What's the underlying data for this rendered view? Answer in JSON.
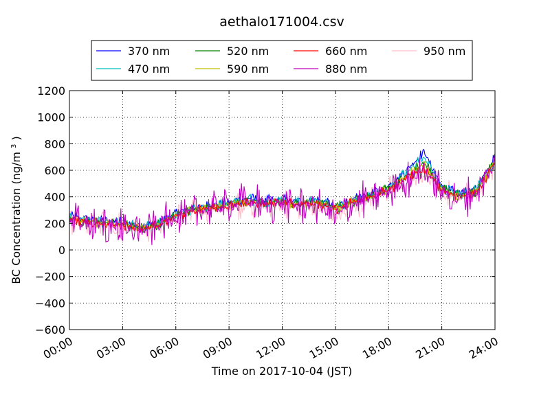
{
  "chart_data": {
    "type": "line",
    "title": "aethalo171004.csv",
    "xlabel": "Time on 2017-10-04 (JST)",
    "ylabel_main": "BC Concentration (ng/m",
    "ylabel_sup": "3",
    "ylabel_end": ")",
    "xlim": [
      "00:00",
      "24:00"
    ],
    "ylim": [
      -600,
      1200
    ],
    "x_ticks": [
      "00:00",
      "03:00",
      "06:00",
      "09:00",
      "12:00",
      "15:00",
      "18:00",
      "21:00",
      "24:00"
    ],
    "y_ticks": [
      "−600",
      "−400",
      "−200",
      "0",
      "200",
      "400",
      "600",
      "800",
      "1000",
      "1200"
    ],
    "grid": true,
    "legend_position": "top",
    "x_hours": [
      0,
      1,
      2,
      3,
      4,
      5,
      6,
      7,
      8,
      9,
      10,
      11,
      12,
      13,
      14,
      15,
      16,
      17,
      18,
      19,
      20,
      21,
      22,
      23,
      24
    ],
    "series": [
      {
        "name": "370 nm",
        "color": "#0000ff",
        "values": [
          250,
          230,
          220,
          210,
          170,
          200,
          280,
          320,
          340,
          360,
          390,
          370,
          380,
          360,
          380,
          330,
          380,
          420,
          480,
          600,
          740,
          480,
          430,
          470,
          700
        ]
      },
      {
        "name": "470 nm",
        "color": "#00bfbf",
        "values": [
          240,
          220,
          210,
          200,
          165,
          195,
          270,
          310,
          330,
          350,
          380,
          360,
          370,
          350,
          370,
          320,
          370,
          410,
          470,
          580,
          700,
          470,
          420,
          460,
          690
        ]
      },
      {
        "name": "520 nm",
        "color": "#008000",
        "values": [
          240,
          215,
          205,
          195,
          160,
          190,
          265,
          305,
          325,
          345,
          375,
          355,
          365,
          345,
          360,
          315,
          365,
          405,
          460,
          560,
          660,
          460,
          410,
          450,
          680
        ]
      },
      {
        "name": "590 nm",
        "color": "#bfbf00",
        "values": [
          235,
          210,
          200,
          190,
          160,
          185,
          260,
          300,
          320,
          340,
          370,
          350,
          360,
          340,
          360,
          310,
          360,
          400,
          455,
          550,
          640,
          455,
          405,
          445,
          670
        ]
      },
      {
        "name": "660 nm",
        "color": "#ff0000",
        "values": [
          230,
          210,
          195,
          185,
          155,
          185,
          255,
          295,
          320,
          335,
          365,
          345,
          355,
          335,
          350,
          305,
          355,
          395,
          450,
          540,
          620,
          450,
          400,
          440,
          660
        ]
      },
      {
        "name": "880 nm",
        "color": "#bf00bf",
        "values": [
          220,
          200,
          190,
          180,
          140,
          175,
          250,
          285,
          310,
          330,
          360,
          340,
          350,
          330,
          340,
          250,
          350,
          390,
          440,
          520,
          600,
          440,
          390,
          430,
          650
        ]
      },
      {
        "name": "950 nm",
        "color": "#ffc0cb",
        "values": [
          215,
          195,
          185,
          175,
          140,
          170,
          245,
          280,
          305,
          325,
          355,
          335,
          345,
          325,
          335,
          240,
          345,
          385,
          435,
          510,
          580,
          435,
          385,
          425,
          640
        ]
      }
    ]
  }
}
